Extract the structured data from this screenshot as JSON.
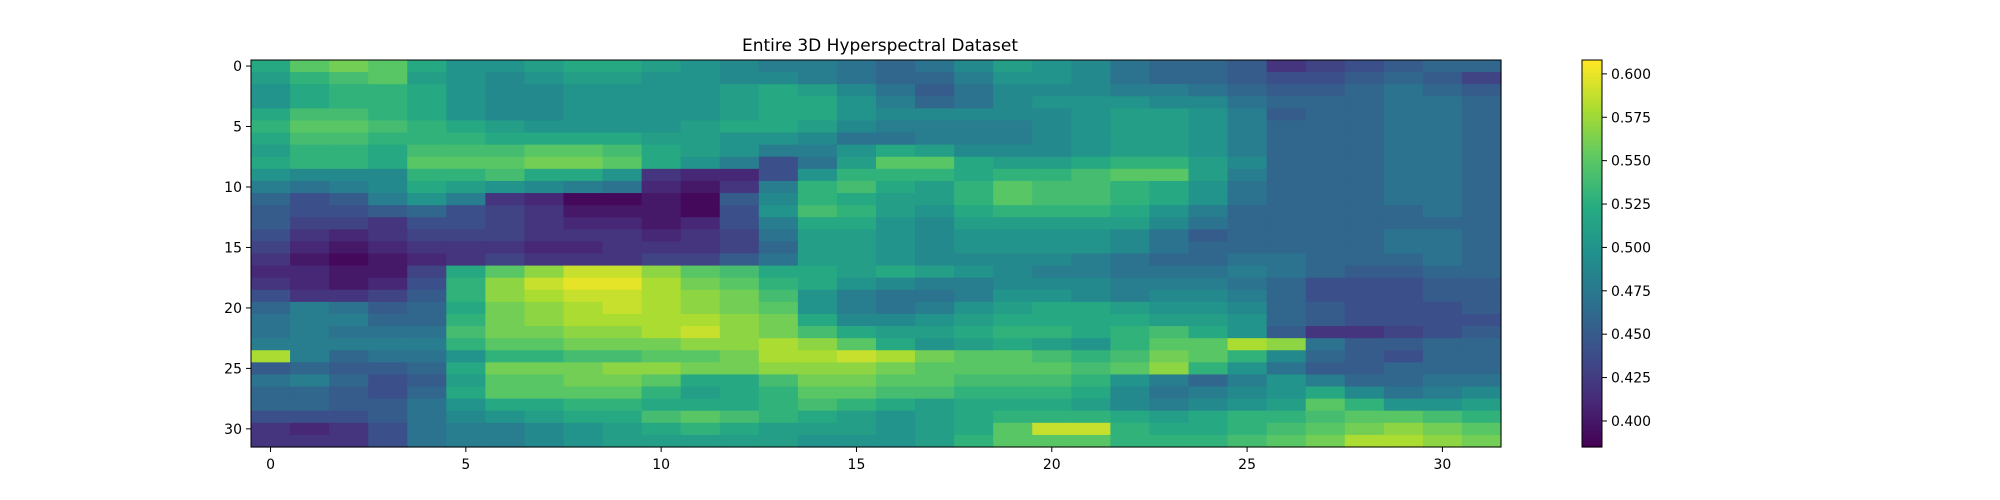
{
  "chart_data": {
    "type": "heatmap",
    "title": "Entire 3D Hyperspectral Dataset",
    "colormap": "viridis",
    "xlabel": "",
    "ylabel": "",
    "rows": 32,
    "cols": 32,
    "x_ticks": [
      0,
      5,
      10,
      15,
      20,
      25,
      30
    ],
    "x_tick_labels": [
      "0",
      "5",
      "10",
      "15",
      "20",
      "25",
      "30"
    ],
    "y_ticks": [
      0,
      5,
      10,
      15,
      20,
      25,
      30
    ],
    "y_tick_labels": [
      "0",
      "5",
      "10",
      "15",
      "20",
      "25",
      "30"
    ],
    "colorbar": {
      "vmin": 0.385,
      "vmax": 0.608,
      "ticks": [
        0.4,
        0.425,
        0.45,
        0.475,
        0.5,
        0.525,
        0.55,
        0.575,
        0.6
      ],
      "tick_labels": [
        "0.400",
        "0.425",
        "0.450",
        "0.475",
        "0.500",
        "0.525",
        "0.550",
        "0.575",
        "0.600"
      ]
    },
    "values": [
      [
        0.52,
        0.55,
        0.56,
        0.55,
        0.52,
        0.5,
        0.5,
        0.51,
        0.52,
        0.52,
        0.51,
        0.5,
        0.49,
        0.48,
        0.48,
        0.47,
        0.46,
        0.47,
        0.49,
        0.51,
        0.5,
        0.49,
        0.47,
        0.46,
        0.46,
        0.45,
        0.42,
        0.43,
        0.44,
        0.45,
        0.46,
        0.46
      ],
      [
        0.51,
        0.53,
        0.54,
        0.55,
        0.51,
        0.5,
        0.49,
        0.5,
        0.51,
        0.51,
        0.5,
        0.5,
        0.49,
        0.49,
        0.48,
        0.47,
        0.46,
        0.46,
        0.48,
        0.5,
        0.5,
        0.49,
        0.47,
        0.46,
        0.46,
        0.45,
        0.44,
        0.44,
        0.45,
        0.46,
        0.45,
        0.43
      ],
      [
        0.5,
        0.52,
        0.53,
        0.53,
        0.52,
        0.5,
        0.49,
        0.49,
        0.5,
        0.5,
        0.5,
        0.5,
        0.51,
        0.52,
        0.51,
        0.49,
        0.47,
        0.45,
        0.47,
        0.49,
        0.49,
        0.49,
        0.48,
        0.48,
        0.47,
        0.46,
        0.45,
        0.45,
        0.46,
        0.47,
        0.46,
        0.45
      ],
      [
        0.5,
        0.52,
        0.53,
        0.53,
        0.52,
        0.5,
        0.49,
        0.49,
        0.5,
        0.5,
        0.5,
        0.5,
        0.51,
        0.52,
        0.52,
        0.5,
        0.48,
        0.46,
        0.47,
        0.49,
        0.5,
        0.5,
        0.5,
        0.49,
        0.49,
        0.47,
        0.46,
        0.46,
        0.46,
        0.47,
        0.47,
        0.46
      ],
      [
        0.52,
        0.54,
        0.54,
        0.53,
        0.52,
        0.5,
        0.49,
        0.49,
        0.5,
        0.5,
        0.5,
        0.5,
        0.51,
        0.52,
        0.52,
        0.5,
        0.49,
        0.49,
        0.49,
        0.49,
        0.49,
        0.5,
        0.51,
        0.51,
        0.5,
        0.48,
        0.45,
        0.46,
        0.46,
        0.47,
        0.47,
        0.46
      ],
      [
        0.53,
        0.55,
        0.55,
        0.54,
        0.53,
        0.52,
        0.51,
        0.5,
        0.5,
        0.5,
        0.5,
        0.51,
        0.52,
        0.52,
        0.51,
        0.49,
        0.48,
        0.48,
        0.48,
        0.48,
        0.49,
        0.5,
        0.51,
        0.51,
        0.5,
        0.48,
        0.46,
        0.46,
        0.46,
        0.47,
        0.47,
        0.46
      ],
      [
        0.52,
        0.54,
        0.54,
        0.53,
        0.53,
        0.53,
        0.52,
        0.52,
        0.52,
        0.52,
        0.51,
        0.51,
        0.5,
        0.5,
        0.49,
        0.47,
        0.47,
        0.48,
        0.48,
        0.48,
        0.49,
        0.5,
        0.51,
        0.51,
        0.5,
        0.48,
        0.46,
        0.46,
        0.46,
        0.47,
        0.47,
        0.46
      ],
      [
        0.51,
        0.53,
        0.53,
        0.52,
        0.54,
        0.54,
        0.54,
        0.55,
        0.55,
        0.54,
        0.52,
        0.51,
        0.5,
        0.48,
        0.48,
        0.5,
        0.52,
        0.51,
        0.49,
        0.49,
        0.49,
        0.5,
        0.51,
        0.51,
        0.5,
        0.48,
        0.46,
        0.46,
        0.46,
        0.47,
        0.47,
        0.46
      ],
      [
        0.52,
        0.53,
        0.53,
        0.52,
        0.55,
        0.55,
        0.55,
        0.56,
        0.56,
        0.55,
        0.52,
        0.5,
        0.48,
        0.44,
        0.47,
        0.51,
        0.55,
        0.55,
        0.52,
        0.51,
        0.51,
        0.52,
        0.53,
        0.53,
        0.51,
        0.49,
        0.46,
        0.46,
        0.46,
        0.47,
        0.47,
        0.46
      ],
      [
        0.5,
        0.49,
        0.49,
        0.49,
        0.53,
        0.53,
        0.54,
        0.52,
        0.52,
        0.5,
        0.42,
        0.41,
        0.41,
        0.44,
        0.5,
        0.53,
        0.53,
        0.53,
        0.52,
        0.53,
        0.53,
        0.54,
        0.55,
        0.55,
        0.51,
        0.48,
        0.46,
        0.46,
        0.46,
        0.47,
        0.47,
        0.46
      ],
      [
        0.48,
        0.47,
        0.48,
        0.49,
        0.52,
        0.51,
        0.5,
        0.49,
        0.48,
        0.47,
        0.41,
        0.4,
        0.42,
        0.48,
        0.53,
        0.54,
        0.52,
        0.51,
        0.53,
        0.55,
        0.54,
        0.54,
        0.53,
        0.52,
        0.5,
        0.47,
        0.46,
        0.46,
        0.46,
        0.47,
        0.47,
        0.46
      ],
      [
        0.46,
        0.44,
        0.45,
        0.48,
        0.5,
        0.48,
        0.42,
        0.41,
        0.39,
        0.39,
        0.4,
        0.39,
        0.45,
        0.49,
        0.53,
        0.52,
        0.51,
        0.51,
        0.53,
        0.55,
        0.54,
        0.54,
        0.53,
        0.52,
        0.5,
        0.47,
        0.46,
        0.46,
        0.46,
        0.47,
        0.47,
        0.46
      ],
      [
        0.45,
        0.44,
        0.44,
        0.45,
        0.46,
        0.44,
        0.43,
        0.42,
        0.4,
        0.4,
        0.4,
        0.39,
        0.44,
        0.5,
        0.54,
        0.53,
        0.51,
        0.5,
        0.52,
        0.53,
        0.53,
        0.53,
        0.52,
        0.5,
        0.48,
        0.46,
        0.46,
        0.46,
        0.46,
        0.46,
        0.47,
        0.46
      ],
      [
        0.45,
        0.43,
        0.43,
        0.42,
        0.44,
        0.44,
        0.43,
        0.42,
        0.41,
        0.41,
        0.4,
        0.41,
        0.44,
        0.48,
        0.52,
        0.52,
        0.5,
        0.49,
        0.51,
        0.51,
        0.51,
        0.51,
        0.51,
        0.49,
        0.47,
        0.46,
        0.46,
        0.46,
        0.46,
        0.46,
        0.46,
        0.46
      ],
      [
        0.44,
        0.42,
        0.41,
        0.42,
        0.43,
        0.43,
        0.43,
        0.42,
        0.42,
        0.42,
        0.41,
        0.42,
        0.43,
        0.47,
        0.51,
        0.51,
        0.5,
        0.49,
        0.5,
        0.5,
        0.5,
        0.5,
        0.49,
        0.47,
        0.45,
        0.46,
        0.46,
        0.46,
        0.46,
        0.47,
        0.47,
        0.46
      ],
      [
        0.43,
        0.41,
        0.4,
        0.41,
        0.42,
        0.42,
        0.42,
        0.41,
        0.41,
        0.42,
        0.42,
        0.42,
        0.43,
        0.46,
        0.51,
        0.51,
        0.5,
        0.49,
        0.5,
        0.5,
        0.5,
        0.5,
        0.49,
        0.47,
        0.46,
        0.46,
        0.46,
        0.46,
        0.46,
        0.47,
        0.47,
        0.46
      ],
      [
        0.42,
        0.4,
        0.39,
        0.4,
        0.41,
        0.42,
        0.43,
        0.42,
        0.42,
        0.42,
        0.43,
        0.43,
        0.45,
        0.47,
        0.51,
        0.51,
        0.5,
        0.49,
        0.49,
        0.49,
        0.49,
        0.48,
        0.47,
        0.46,
        0.46,
        0.47,
        0.47,
        0.46,
        0.46,
        0.46,
        0.47,
        0.46
      ],
      [
        0.41,
        0.41,
        0.4,
        0.4,
        0.43,
        0.52,
        0.55,
        0.57,
        0.59,
        0.59,
        0.57,
        0.55,
        0.54,
        0.52,
        0.52,
        0.51,
        0.52,
        0.51,
        0.5,
        0.49,
        0.48,
        0.48,
        0.47,
        0.47,
        0.47,
        0.48,
        0.47,
        0.46,
        0.45,
        0.45,
        0.46,
        0.46
      ],
      [
        0.42,
        0.41,
        0.4,
        0.41,
        0.44,
        0.53,
        0.57,
        0.59,
        0.6,
        0.6,
        0.58,
        0.56,
        0.55,
        0.53,
        0.52,
        0.5,
        0.49,
        0.48,
        0.48,
        0.49,
        0.49,
        0.49,
        0.48,
        0.48,
        0.48,
        0.47,
        0.46,
        0.44,
        0.44,
        0.44,
        0.45,
        0.45
      ],
      [
        0.44,
        0.42,
        0.42,
        0.43,
        0.45,
        0.53,
        0.57,
        0.58,
        0.59,
        0.59,
        0.58,
        0.57,
        0.56,
        0.54,
        0.5,
        0.48,
        0.47,
        0.47,
        0.48,
        0.5,
        0.5,
        0.49,
        0.48,
        0.49,
        0.49,
        0.48,
        0.46,
        0.44,
        0.44,
        0.44,
        0.45,
        0.45
      ],
      [
        0.46,
        0.48,
        0.47,
        0.45,
        0.46,
        0.52,
        0.56,
        0.57,
        0.58,
        0.59,
        0.58,
        0.57,
        0.56,
        0.55,
        0.5,
        0.48,
        0.47,
        0.48,
        0.5,
        0.51,
        0.52,
        0.52,
        0.51,
        0.5,
        0.5,
        0.49,
        0.46,
        0.45,
        0.44,
        0.44,
        0.44,
        0.45
      ],
      [
        0.47,
        0.48,
        0.48,
        0.46,
        0.46,
        0.53,
        0.56,
        0.57,
        0.58,
        0.58,
        0.58,
        0.58,
        0.57,
        0.56,
        0.52,
        0.49,
        0.49,
        0.5,
        0.51,
        0.52,
        0.52,
        0.52,
        0.52,
        0.51,
        0.51,
        0.5,
        0.46,
        0.45,
        0.44,
        0.44,
        0.44,
        0.44
      ],
      [
        0.47,
        0.48,
        0.47,
        0.47,
        0.47,
        0.54,
        0.56,
        0.56,
        0.57,
        0.57,
        0.58,
        0.59,
        0.57,
        0.56,
        0.54,
        0.52,
        0.51,
        0.51,
        0.52,
        0.53,
        0.53,
        0.52,
        0.53,
        0.54,
        0.52,
        0.5,
        0.45,
        0.42,
        0.42,
        0.43,
        0.44,
        0.45
      ],
      [
        0.48,
        0.48,
        0.48,
        0.48,
        0.48,
        0.53,
        0.55,
        0.55,
        0.56,
        0.56,
        0.56,
        0.57,
        0.57,
        0.58,
        0.57,
        0.55,
        0.52,
        0.5,
        0.51,
        0.52,
        0.51,
        0.5,
        0.53,
        0.55,
        0.55,
        0.58,
        0.57,
        0.47,
        0.45,
        0.45,
        0.46,
        0.46
      ],
      [
        0.58,
        0.48,
        0.46,
        0.47,
        0.47,
        0.5,
        0.53,
        0.53,
        0.54,
        0.54,
        0.55,
        0.55,
        0.56,
        0.58,
        0.58,
        0.59,
        0.58,
        0.56,
        0.55,
        0.55,
        0.54,
        0.53,
        0.54,
        0.56,
        0.55,
        0.53,
        0.49,
        0.46,
        0.45,
        0.44,
        0.46,
        0.46
      ],
      [
        0.45,
        0.46,
        0.45,
        0.45,
        0.46,
        0.52,
        0.56,
        0.56,
        0.56,
        0.57,
        0.57,
        0.56,
        0.56,
        0.57,
        0.57,
        0.57,
        0.56,
        0.55,
        0.55,
        0.55,
        0.55,
        0.54,
        0.55,
        0.57,
        0.53,
        0.5,
        0.47,
        0.45,
        0.45,
        0.46,
        0.46,
        0.46
      ],
      [
        0.47,
        0.48,
        0.46,
        0.44,
        0.45,
        0.51,
        0.55,
        0.55,
        0.56,
        0.56,
        0.55,
        0.52,
        0.52,
        0.54,
        0.56,
        0.56,
        0.55,
        0.55,
        0.54,
        0.54,
        0.54,
        0.53,
        0.5,
        0.48,
        0.46,
        0.48,
        0.5,
        0.48,
        0.46,
        0.46,
        0.47,
        0.47
      ],
      [
        0.46,
        0.46,
        0.45,
        0.44,
        0.46,
        0.52,
        0.55,
        0.55,
        0.55,
        0.55,
        0.53,
        0.51,
        0.52,
        0.53,
        0.55,
        0.55,
        0.54,
        0.54,
        0.53,
        0.53,
        0.53,
        0.52,
        0.49,
        0.47,
        0.48,
        0.49,
        0.5,
        0.52,
        0.49,
        0.47,
        0.48,
        0.49
      ],
      [
        0.46,
        0.46,
        0.45,
        0.45,
        0.47,
        0.5,
        0.52,
        0.52,
        0.53,
        0.53,
        0.52,
        0.52,
        0.52,
        0.53,
        0.54,
        0.53,
        0.52,
        0.51,
        0.52,
        0.52,
        0.52,
        0.51,
        0.49,
        0.48,
        0.49,
        0.5,
        0.51,
        0.55,
        0.53,
        0.5,
        0.5,
        0.51
      ],
      [
        0.44,
        0.44,
        0.44,
        0.45,
        0.47,
        0.49,
        0.5,
        0.51,
        0.52,
        0.52,
        0.54,
        0.55,
        0.54,
        0.53,
        0.52,
        0.51,
        0.5,
        0.51,
        0.52,
        0.53,
        0.53,
        0.53,
        0.52,
        0.51,
        0.52,
        0.53,
        0.53,
        0.54,
        0.55,
        0.55,
        0.54,
        0.53
      ],
      [
        0.42,
        0.41,
        0.42,
        0.44,
        0.47,
        0.48,
        0.48,
        0.49,
        0.5,
        0.51,
        0.52,
        0.53,
        0.52,
        0.51,
        0.51,
        0.51,
        0.5,
        0.51,
        0.52,
        0.55,
        0.59,
        0.59,
        0.53,
        0.52,
        0.52,
        0.53,
        0.54,
        0.55,
        0.56,
        0.57,
        0.56,
        0.55
      ],
      [
        0.42,
        0.42,
        0.42,
        0.44,
        0.47,
        0.48,
        0.48,
        0.49,
        0.5,
        0.51,
        0.51,
        0.51,
        0.51,
        0.51,
        0.5,
        0.5,
        0.5,
        0.51,
        0.53,
        0.55,
        0.55,
        0.55,
        0.53,
        0.53,
        0.53,
        0.54,
        0.55,
        0.56,
        0.58,
        0.58,
        0.57,
        0.56
      ]
    ]
  }
}
